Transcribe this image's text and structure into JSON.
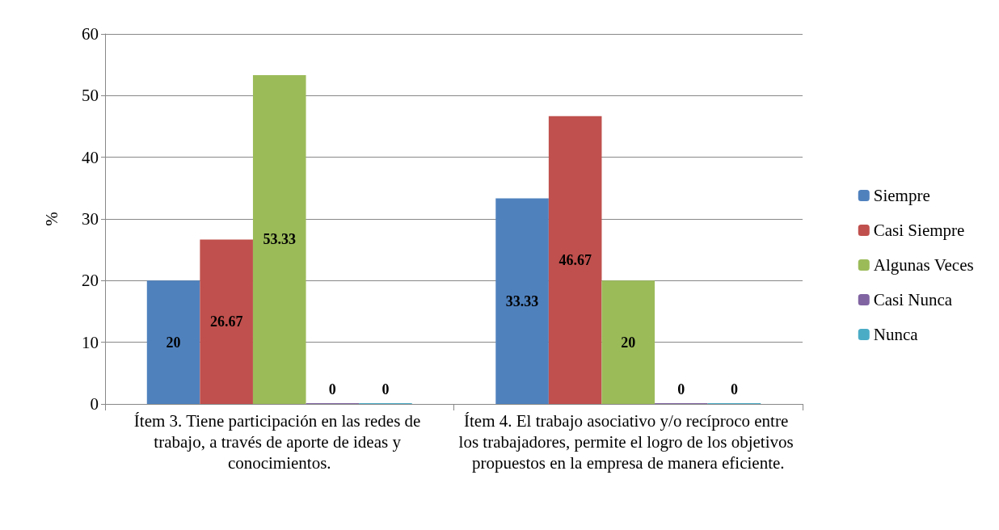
{
  "chart_data": {
    "type": "bar",
    "ylabel": "%",
    "categories": [
      "Ítem 3. Tiene participación en las redes de trabajo, a través de aporte de ideas y conocimientos.",
      "Ítem 4. El trabajo asociativo y/o recíproco entre los trabajadores, permite el logro de los objetivos propuestos en la empresa de manera eficiente."
    ],
    "series": [
      {
        "name": "Siempre",
        "color": "#4f81bd",
        "values": [
          20,
          33.33
        ]
      },
      {
        "name": "Casi Siempre",
        "color": "#c0504d",
        "values": [
          26.67,
          46.67
        ]
      },
      {
        "name": "Algunas Veces",
        "color": "#9bbb59",
        "values": [
          53.33,
          20
        ]
      },
      {
        "name": "Casi Nunca",
        "color": "#8064a2",
        "values": [
          0,
          0
        ]
      },
      {
        "name": "Nunca",
        "color": "#4bacc6",
        "values": [
          0,
          0
        ]
      }
    ],
    "ylim": [
      0,
      60
    ],
    "yticks": [
      0,
      10,
      20,
      30,
      40,
      50,
      60
    ],
    "grid": "y",
    "legend": "right",
    "data_labels": true
  }
}
